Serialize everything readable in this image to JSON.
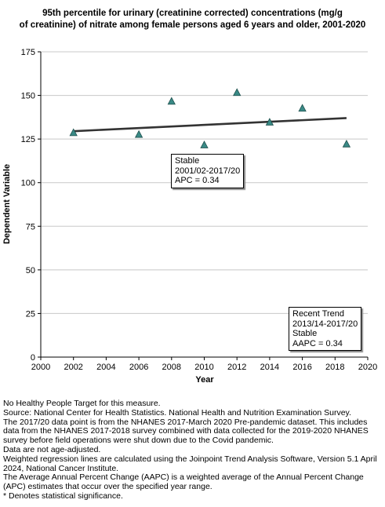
{
  "chart_data": {
    "type": "scatter",
    "title_lines": [
      "95th percentile for urinary (creatinine corrected) concentrations (mg/g",
      "of creatinine) of nitrate among  female persons aged 6 years and older, 2001-2020"
    ],
    "xlabel": "Year",
    "ylabel": "Dependent Variable",
    "xlim": [
      2000,
      2020
    ],
    "ylim": [
      0,
      175
    ],
    "xticks": [
      2000,
      2002,
      2004,
      2006,
      2008,
      2010,
      2012,
      2014,
      2016,
      2018,
      2020
    ],
    "yticks": [
      0,
      25,
      50,
      75,
      100,
      125,
      150,
      175
    ],
    "grid": "horizontal",
    "marker_color": "#3a8a86",
    "line_color": "#333333",
    "series": [
      {
        "points": [
          {
            "x": 2002,
            "y": 128.5
          },
          {
            "x": 2006,
            "y": 127.5
          },
          {
            "x": 2008,
            "y": 146.5
          },
          {
            "x": 2010,
            "y": 121.5
          },
          {
            "x": 2012,
            "y": 151.5
          },
          {
            "x": 2014,
            "y": 134.5
          },
          {
            "x": 2016,
            "y": 142.5
          },
          {
            "x": 2018.7,
            "y": 122.0
          }
        ]
      }
    ],
    "trend_line": {
      "x": [
        2002,
        2018.7
      ],
      "y": [
        129.5,
        137.0
      ]
    },
    "annotations": [
      {
        "lines": [
          "Stable",
          "2001/02-2017/20",
          "APC =  0.34"
        ]
      },
      {
        "lines": [
          "Recent Trend",
          "2013/14-2017/20",
          "Stable",
          "AAPC =  0.34"
        ]
      }
    ]
  },
  "notes": [
    "No Healthy People Target for this measure.",
    "Source: National Center for Health Statistics. National Health and Nutrition Examination Survey.",
    "The 2017/20 data point is from the NHANES 2017-March 2020 Pre-pandemic dataset. This includes data from the NHANES 2017-2018 survey combined with data collected for the 2019-2020 NHANES survey before field operations were shut down due to the Covid pandemic.",
    "Data are not age-adjusted.",
    "Weighted regression lines are calculated using the Joinpoint Trend Analysis Software, Version 5.1 April 2024, National Cancer Institute.",
    "The Average Annual Percent Change (AAPC) is a weighted average of the Annual Percent Change (APC) estimates that occur over the specified year range.",
    "* Denotes statistical significance."
  ]
}
